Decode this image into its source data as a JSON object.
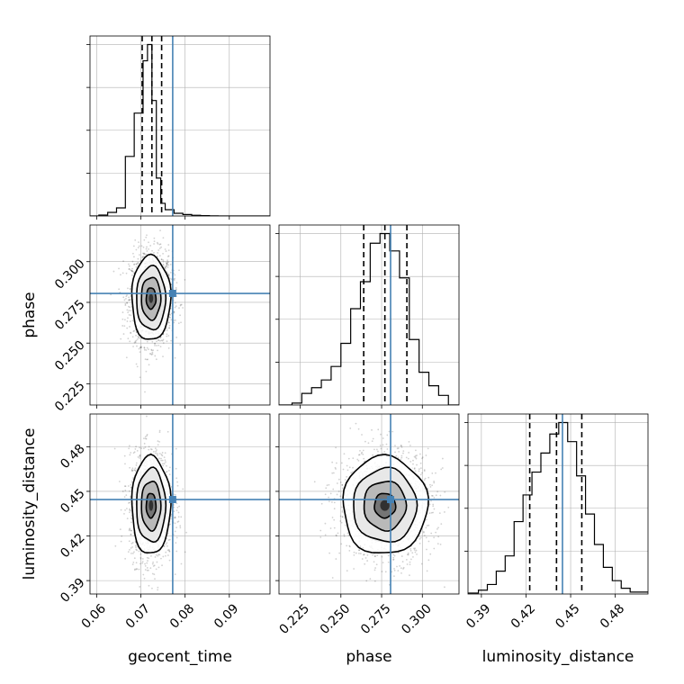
{
  "chart_data": {
    "type": "corner",
    "parameters": [
      "geocent_time",
      "phase",
      "luminosity_distance"
    ],
    "truths": {
      "geocent_time": 0.0772,
      "phase": 0.2805,
      "luminosity_distance": 0.4445
    },
    "quantiles": {
      "geocent_time": [
        0.0703,
        0.0725,
        0.0747
      ],
      "phase": [
        0.264,
        0.277,
        0.2905
      ],
      "luminosity_distance": [
        0.4225,
        0.4405,
        0.4575
      ]
    },
    "ranges": {
      "geocent_time": [
        0.0585,
        0.0992
      ],
      "phase": [
        0.212,
        0.3225
      ],
      "luminosity_distance": [
        0.381,
        0.502
      ]
    },
    "ticks": {
      "geocent_time": [
        0.06,
        0.07,
        0.08,
        0.09
      ],
      "phase": [
        0.225,
        0.25,
        0.275,
        0.3
      ],
      "luminosity_distance": [
        0.39,
        0.42,
        0.45,
        0.48
      ]
    },
    "tick_labels": {
      "geocent_time": [
        "0.06",
        "0.07",
        "0.08",
        "0.09"
      ],
      "phase": [
        "0.225",
        "0.250",
        "0.275",
        "0.300"
      ],
      "luminosity_distance": [
        "0.39",
        "0.42",
        "0.45",
        "0.48"
      ]
    },
    "axis_titles": {
      "geocent_time": "geocent_time",
      "phase": "phase",
      "luminosity_distance": "luminosity_distance"
    },
    "histograms": {
      "geocent_time": {
        "edges": [
          0.0585,
          0.0605,
          0.0625,
          0.0645,
          0.0665,
          0.0685,
          0.0705,
          0.0715,
          0.0725,
          0.0735,
          0.0745,
          0.0755,
          0.0775,
          0.0795,
          0.0815,
          0.0835,
          0.0855,
          0.0875,
          0.0992
        ],
        "counts": [
          0.0,
          0.005,
          0.02,
          0.045,
          0.33,
          0.57,
          0.86,
          0.95,
          0.64,
          0.21,
          0.07,
          0.035,
          0.015,
          0.008,
          0.004,
          0.002,
          0.001,
          0.0
        ]
      },
      "phase": {
        "edges": [
          0.212,
          0.22,
          0.226,
          0.232,
          0.238,
          0.244,
          0.25,
          0.256,
          0.262,
          0.268,
          0.274,
          0.28,
          0.286,
          0.292,
          0.298,
          0.304,
          0.31,
          0.316,
          0.3225
        ],
        "counts": [
          0.0,
          0.01,
          0.06,
          0.09,
          0.13,
          0.2,
          0.32,
          0.5,
          0.64,
          0.84,
          0.89,
          0.8,
          0.66,
          0.34,
          0.17,
          0.1,
          0.05,
          0.0
        ]
      },
      "luminosity_distance": {
        "edges": [
          0.381,
          0.388,
          0.394,
          0.4,
          0.406,
          0.412,
          0.418,
          0.424,
          0.43,
          0.436,
          0.442,
          0.448,
          0.454,
          0.46,
          0.466,
          0.472,
          0.478,
          0.484,
          0.49,
          0.502
        ],
        "counts": [
          0.005,
          0.02,
          0.05,
          0.12,
          0.2,
          0.38,
          0.52,
          0.64,
          0.74,
          0.84,
          0.9,
          0.8,
          0.62,
          0.42,
          0.26,
          0.14,
          0.07,
          0.03,
          0.01
        ]
      }
    },
    "density_2d": [
      {
        "x": "geocent_time",
        "y": "phase",
        "center": [
          0.0723,
          0.2775
        ],
        "sd": [
          0.0022,
          0.013
        ],
        "contour_levels": [
          0.5,
          1.0,
          1.5,
          2.0
        ]
      },
      {
        "x": "geocent_time",
        "y": "luminosity_distance",
        "center": [
          0.0723,
          0.4405
        ],
        "sd": [
          0.0022,
          0.0165
        ],
        "contour_levels": [
          0.5,
          1.0,
          1.5,
          2.0
        ]
      },
      {
        "x": "phase",
        "y": "luminosity_distance",
        "center": [
          0.277,
          0.4405
        ],
        "sd": [
          0.013,
          0.0165
        ],
        "contour_levels": [
          0.5,
          1.0,
          1.5,
          2.0
        ]
      }
    ],
    "grid": true,
    "truth_color": "#4682b4"
  }
}
